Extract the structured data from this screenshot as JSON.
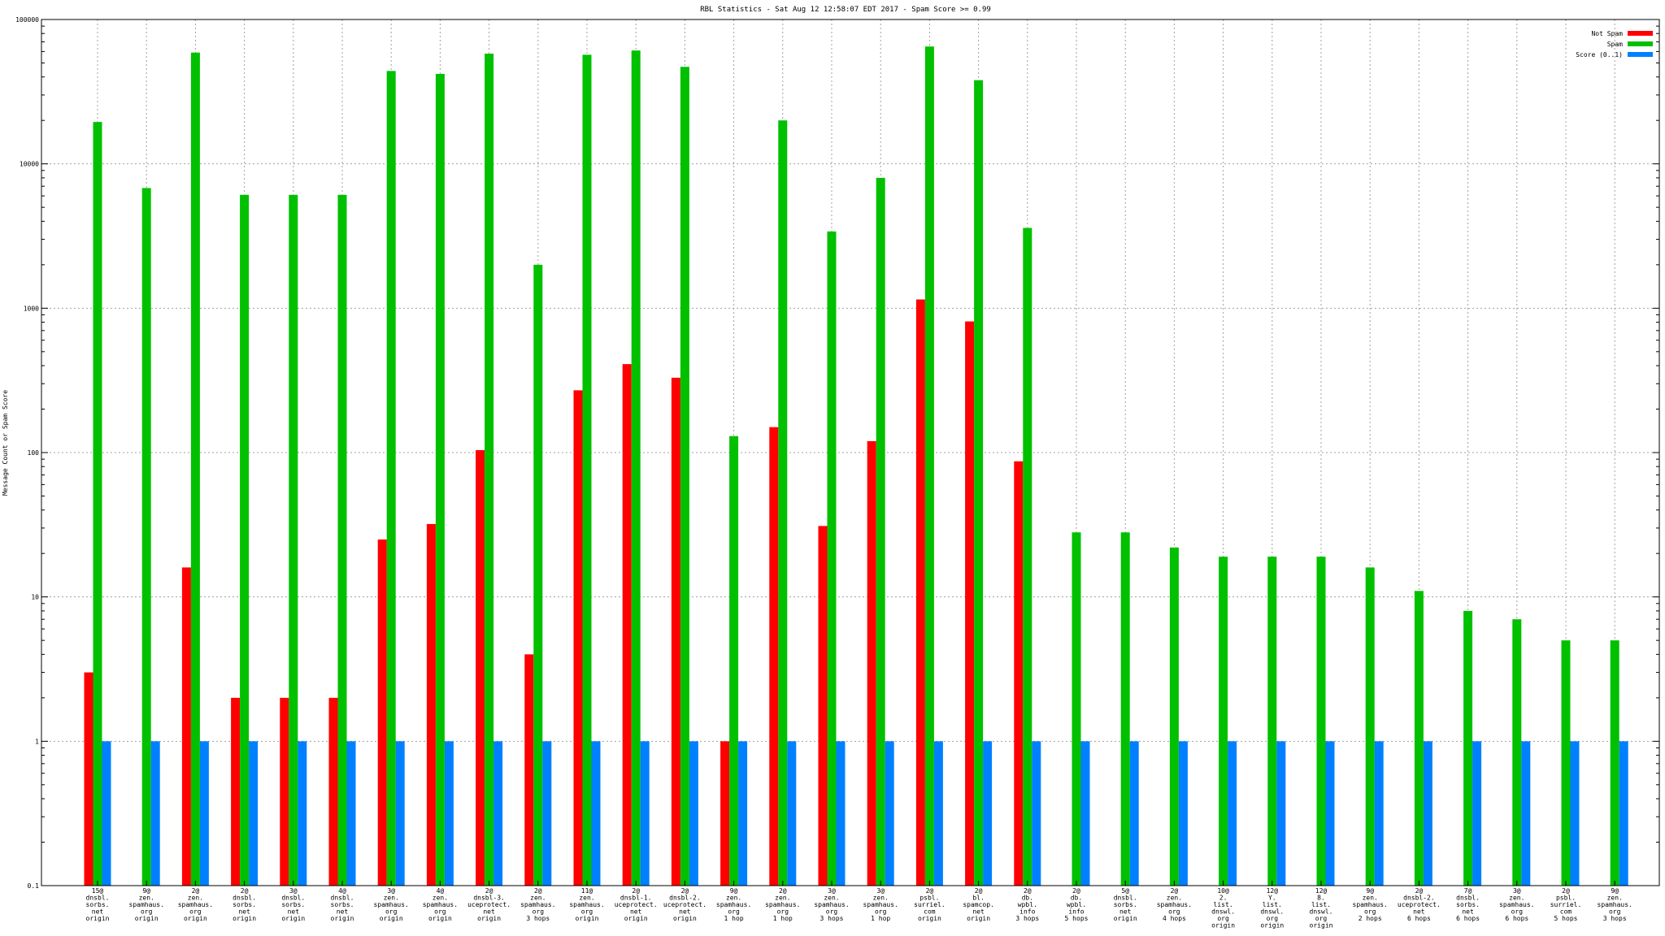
{
  "chart_data": {
    "type": "bar",
    "title": "RBL Statistics - Sat Aug 12 12:58:07 EDT 2017 - Spam Score >= 0.99",
    "ylabel": "Message Count or Spam Score",
    "yscale": "log",
    "ylim": [
      0.1,
      100000
    ],
    "yticks": [
      "0.1",
      "1",
      "10",
      "100",
      "1000",
      "10000",
      "100000"
    ],
    "grid": true,
    "legend_position": "top-right",
    "categories": [
      [
        "15@",
        "dnsbl.",
        "sorbs.",
        "net",
        "origin"
      ],
      [
        "9@",
        "zen.",
        "spamhaus.",
        "org",
        "origin"
      ],
      [
        "2@",
        "zen.",
        "spamhaus.",
        "org",
        "origin"
      ],
      [
        "2@",
        "dnsbl.",
        "sorbs.",
        "net",
        "origin"
      ],
      [
        "3@",
        "dnsbl.",
        "sorbs.",
        "net",
        "origin"
      ],
      [
        "4@",
        "dnsbl.",
        "sorbs.",
        "net",
        "origin"
      ],
      [
        "3@",
        "zen.",
        "spamhaus.",
        "org",
        "origin"
      ],
      [
        "4@",
        "zen.",
        "spamhaus.",
        "org",
        "origin"
      ],
      [
        "2@",
        "dnsbl-3.",
        "uceprotect.",
        "net",
        "origin"
      ],
      [
        "2@",
        "zen.",
        "spamhaus.",
        "org",
        "3 hops"
      ],
      [
        "11@",
        "zen.",
        "spamhaus.",
        "org",
        "origin"
      ],
      [
        "2@",
        "dnsbl-1.",
        "uceprotect.",
        "net",
        "origin"
      ],
      [
        "2@",
        "dnsbl-2.",
        "uceprotect.",
        "net",
        "origin"
      ],
      [
        "9@",
        "zen.",
        "spamhaus.",
        "org",
        "1 hop"
      ],
      [
        "2@",
        "zen.",
        "spamhaus.",
        "org",
        "1 hop"
      ],
      [
        "3@",
        "zen.",
        "spamhaus.",
        "org",
        "3 hops"
      ],
      [
        "3@",
        "zen.",
        "spamhaus.",
        "org",
        "1 hop"
      ],
      [
        "2@",
        "psbl.",
        "surriel.",
        "com",
        "origin"
      ],
      [
        "2@",
        "bl.",
        "spamcop.",
        "net",
        "origin"
      ],
      [
        "2@",
        "db.",
        "wpbl.",
        "info",
        "3 hops"
      ],
      [
        "2@",
        "db.",
        "wpbl.",
        "info",
        "5 hops"
      ],
      [
        "5@",
        "dnsbl.",
        "sorbs.",
        "net",
        "origin"
      ],
      [
        "2@",
        "zen.",
        "spamhaus.",
        "org",
        "4 hops"
      ],
      [
        "10@",
        "2.",
        "list.",
        "dnswl.",
        "org",
        "origin"
      ],
      [
        "12@",
        "Y.",
        "list.",
        "dnswl.",
        "org",
        "origin"
      ],
      [
        "12@",
        "8.",
        "list.",
        "dnswl.",
        "org",
        "origin"
      ],
      [
        "9@",
        "zen.",
        "spamhaus.",
        "org",
        "2 hops"
      ],
      [
        "2@",
        "dnsbl-2.",
        "uceprotect.",
        "net",
        "6 hops"
      ],
      [
        "7@",
        "dnsbl.",
        "sorbs.",
        "net",
        "6 hops"
      ],
      [
        "3@",
        "zen.",
        "spamhaus.",
        "org",
        "6 hops"
      ],
      [
        "2@",
        "psbl.",
        "surriel.",
        "com",
        "5 hops"
      ],
      [
        "9@",
        "zen.",
        "spamhaus.",
        "org",
        "3 hops"
      ]
    ],
    "series": [
      {
        "name": "Not Spam",
        "color": "#ff0000",
        "values": [
          3,
          0,
          16,
          2,
          2,
          2,
          25,
          32,
          104,
          4,
          270,
          410,
          330,
          1,
          150,
          31,
          120,
          1150,
          810,
          87,
          0,
          0,
          0,
          0,
          0,
          0,
          0,
          0,
          0,
          0,
          0,
          0
        ]
      },
      {
        "name": "Spam",
        "color": "#00c000",
        "values": [
          19500,
          6800,
          59000,
          6100,
          6100,
          6100,
          44000,
          42000,
          58000,
          2000,
          57000,
          61000,
          47000,
          130,
          20000,
          3400,
          8000,
          65000,
          38000,
          3600,
          28,
          28,
          22,
          19,
          19,
          19,
          16,
          11,
          8,
          7,
          5,
          5
        ]
      },
      {
        "name": "Score (0..1)",
        "color": "#0080ff",
        "values": [
          1,
          1,
          1,
          1,
          1,
          1,
          1,
          1,
          1,
          1,
          1,
          1,
          1,
          1,
          1,
          1,
          1,
          1,
          1,
          1,
          1,
          1,
          1,
          1,
          1,
          1,
          1,
          1,
          1,
          1,
          1,
          1
        ]
      }
    ]
  }
}
